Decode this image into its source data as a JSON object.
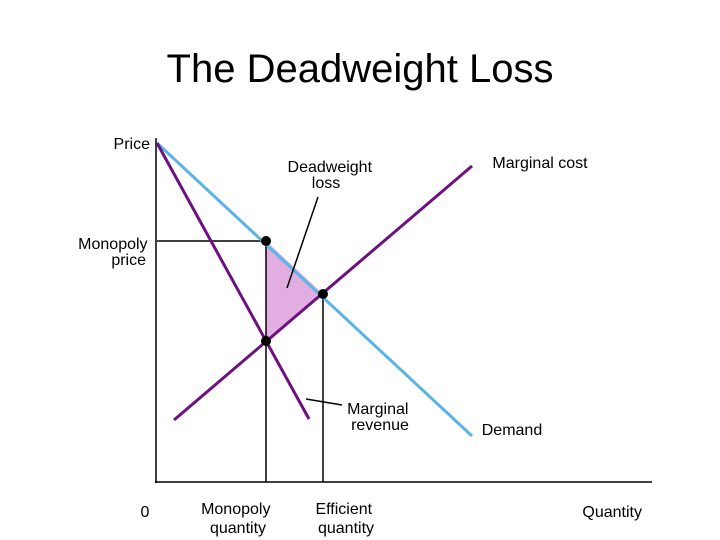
{
  "title": "The Deadweight Loss",
  "labels": {
    "price_axis": "Price",
    "quantity_axis": "Quantity",
    "origin": "0",
    "deadweight_loss": [
      "Deadweight",
      "loss"
    ],
    "marginal_cost": "Marginal cost",
    "monopoly_price": [
      "Monopoly",
      "price"
    ],
    "marginal_revenue": [
      "Marginal",
      "revenue"
    ],
    "demand": "Demand",
    "monopoly_quantity": [
      "Monopoly",
      "quantity"
    ],
    "efficient_quantity": [
      "Efficient",
      "quantity"
    ]
  }
}
